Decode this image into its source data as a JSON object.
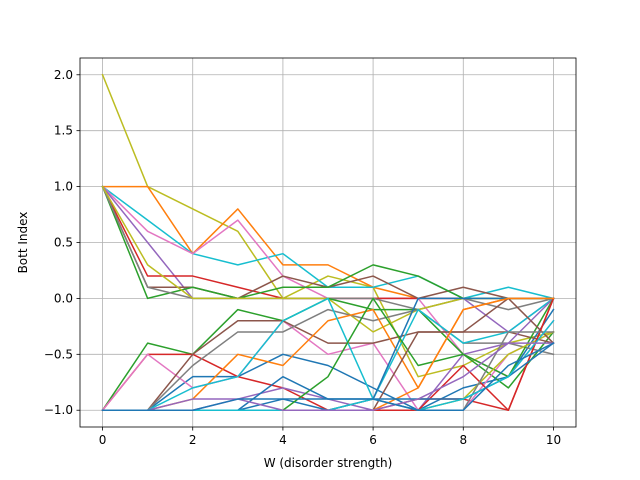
{
  "chart_data": {
    "type": "line",
    "title": "",
    "xlabel": "W (disorder strength)",
    "ylabel": "Bott Index",
    "x": [
      0,
      1,
      2,
      3,
      4,
      5,
      6,
      7,
      8,
      9,
      10
    ],
    "xlim": [
      -0.5,
      10.5
    ],
    "ylim": [
      -1.15,
      2.15
    ],
    "xticks": [
      0,
      2,
      4,
      6,
      8,
      10
    ],
    "xtick_labels": [
      "0",
      "2",
      "4",
      "6",
      "8",
      "10"
    ],
    "yticks": [
      -1.0,
      -0.5,
      0.0,
      0.5,
      1.0,
      1.5,
      2.0
    ],
    "ytick_labels": [
      "−1.0",
      "−0.5",
      "0.0",
      "0.5",
      "1.0",
      "1.5",
      "2.0"
    ],
    "grid": true,
    "legend": false,
    "series": [
      {
        "color": "#bcbd22",
        "values": [
          2.0,
          1.0,
          0.8,
          0.6,
          0.0,
          0.2,
          0.1,
          -0.7,
          -0.6,
          -0.4,
          -0.3
        ]
      },
      {
        "color": "#ff7f0e",
        "values": [
          1.0,
          1.0,
          0.4,
          0.8,
          0.3,
          0.3,
          0.1,
          0.0,
          0.0,
          0.0,
          0.0
        ]
      },
      {
        "color": "#17becf",
        "values": [
          1.0,
          0.7,
          0.4,
          0.3,
          0.4,
          0.1,
          0.1,
          0.2,
          0.0,
          0.1,
          0.0
        ]
      },
      {
        "color": "#e377c2",
        "values": [
          1.0,
          0.6,
          0.4,
          0.7,
          0.2,
          0.0,
          0.0,
          0.0,
          -0.5,
          -0.7,
          -0.2
        ]
      },
      {
        "color": "#9467bd",
        "values": [
          1.0,
          0.5,
          0.0,
          0.0,
          0.0,
          0.0,
          0.0,
          0.0,
          0.0,
          -0.3,
          0.0
        ]
      },
      {
        "color": "#d62728",
        "values": [
          1.0,
          0.2,
          0.2,
          0.1,
          0.0,
          0.0,
          0.0,
          0.0,
          0.0,
          0.0,
          0.0
        ]
      },
      {
        "color": "#8c564b",
        "values": [
          1.0,
          0.1,
          0.1,
          0.0,
          0.2,
          0.1,
          0.2,
          0.0,
          0.1,
          0.0,
          0.0
        ]
      },
      {
        "color": "#2ca02c",
        "values": [
          1.0,
          0.0,
          0.1,
          0.0,
          0.1,
          0.1,
          0.3,
          0.2,
          0.0,
          0.0,
          0.0
        ]
      },
      {
        "color": "#7f7f7f",
        "values": [
          1.0,
          0.1,
          0.0,
          0.0,
          0.0,
          0.0,
          0.0,
          -0.1,
          0.0,
          -0.1,
          0.0
        ]
      },
      {
        "color": "#bcbd22",
        "values": [
          1.0,
          0.3,
          0.0,
          0.0,
          0.0,
          0.0,
          -0.3,
          -0.1,
          0.0,
          0.0,
          0.0
        ]
      },
      {
        "color": "#1f77b4",
        "values": [
          -1.0,
          -1.0,
          -0.7,
          -0.7,
          -0.5,
          -0.6,
          -0.8,
          -1.0,
          -0.8,
          -0.7,
          -0.1
        ]
      },
      {
        "color": "#2ca02c",
        "values": [
          -1.0,
          -0.4,
          -0.5,
          -0.1,
          -0.2,
          0.0,
          -0.1,
          -0.1,
          -0.5,
          -0.8,
          -0.3
        ]
      },
      {
        "color": "#d62728",
        "values": [
          -1.0,
          -0.5,
          -0.5,
          -0.7,
          -0.8,
          -1.0,
          -1.0,
          -0.9,
          -0.9,
          -1.0,
          0.0
        ]
      },
      {
        "color": "#e377c2",
        "values": [
          -1.0,
          -0.5,
          -0.8,
          -0.7,
          -0.2,
          -0.5,
          -0.4,
          -1.0,
          -1.0,
          -0.5,
          -0.3
        ]
      },
      {
        "color": "#8c564b",
        "values": [
          -1.0,
          -1.0,
          -0.5,
          -0.2,
          -0.2,
          -0.4,
          -0.4,
          -0.3,
          -0.3,
          -0.3,
          -0.4
        ]
      },
      {
        "color": "#7f7f7f",
        "values": [
          -1.0,
          -1.0,
          -0.6,
          -0.3,
          -0.3,
          -0.1,
          -0.2,
          -0.1,
          -0.4,
          -0.4,
          -0.5
        ]
      },
      {
        "color": "#ff7f0e",
        "values": [
          -1.0,
          -1.0,
          -0.9,
          -0.5,
          -0.6,
          -0.2,
          -0.1,
          -0.8,
          -0.1,
          0.0,
          0.0
        ]
      },
      {
        "color": "#17becf",
        "values": [
          -1.0,
          -1.0,
          -0.8,
          -0.7,
          -0.2,
          0.0,
          -0.9,
          -0.1,
          -0.4,
          -0.3,
          0.0
        ]
      },
      {
        "color": "#9467bd",
        "values": [
          -1.0,
          -1.0,
          -1.0,
          -0.9,
          -0.8,
          -0.9,
          -1.0,
          -1.0,
          -0.5,
          -0.4,
          0.0
        ]
      },
      {
        "color": "#1f77b4",
        "values": [
          -1.0,
          -1.0,
          -1.0,
          -1.0,
          -0.9,
          -1.0,
          -0.9,
          0.0,
          0.0,
          0.0,
          0.0
        ]
      },
      {
        "color": "#2ca02c",
        "values": [
          -1.0,
          -1.0,
          -1.0,
          -1.0,
          -1.0,
          -0.7,
          0.0,
          -0.6,
          -0.5,
          -0.7,
          0.0
        ]
      },
      {
        "color": "#bcbd22",
        "values": [
          -1.0,
          -1.0,
          -1.0,
          -1.0,
          -1.0,
          -1.0,
          -1.0,
          -1.0,
          -0.9,
          -0.5,
          -0.3
        ]
      },
      {
        "color": "#8c564b",
        "values": [
          -1.0,
          -1.0,
          -1.0,
          -1.0,
          -1.0,
          -1.0,
          -1.0,
          -0.3,
          -0.3,
          0.0,
          -0.4
        ]
      },
      {
        "color": "#d62728",
        "values": [
          -1.0,
          -1.0,
          -1.0,
          -1.0,
          -1.0,
          -1.0,
          -1.0,
          -1.0,
          -0.6,
          -1.0,
          0.0
        ]
      },
      {
        "color": "#7f7f7f",
        "values": [
          -1.0,
          -1.0,
          -1.0,
          -1.0,
          -1.0,
          -1.0,
          -0.9,
          -1.0,
          -1.0,
          -0.3,
          -0.3
        ]
      },
      {
        "color": "#ff7f0e",
        "values": [
          -1.0,
          -1.0,
          -1.0,
          -1.0,
          -1.0,
          -1.0,
          -1.0,
          -0.8,
          -0.1,
          0.0,
          0.0
        ]
      },
      {
        "color": "#1f77b4",
        "values": [
          -1.0,
          -1.0,
          -1.0,
          -1.0,
          -0.7,
          -0.9,
          -0.9,
          -0.9,
          -0.9,
          -0.7,
          -0.4
        ]
      },
      {
        "color": "#17becf",
        "values": [
          -1.0,
          -1.0,
          -1.0,
          -1.0,
          -1.0,
          -1.0,
          -0.9,
          -1.0,
          -0.9,
          -0.7,
          -0.2
        ]
      },
      {
        "color": "#9467bd",
        "values": [
          -1.0,
          -1.0,
          -0.9,
          -0.9,
          -1.0,
          -1.0,
          -1.0,
          -0.9,
          -0.7,
          -0.4,
          -0.4
        ]
      },
      {
        "color": "#1f77b4",
        "values": [
          -1.0,
          -1.0,
          -1.0,
          -0.9,
          -0.9,
          -0.9,
          -0.9,
          -1.0,
          -1.0,
          -0.6,
          -0.4
        ]
      }
    ]
  }
}
